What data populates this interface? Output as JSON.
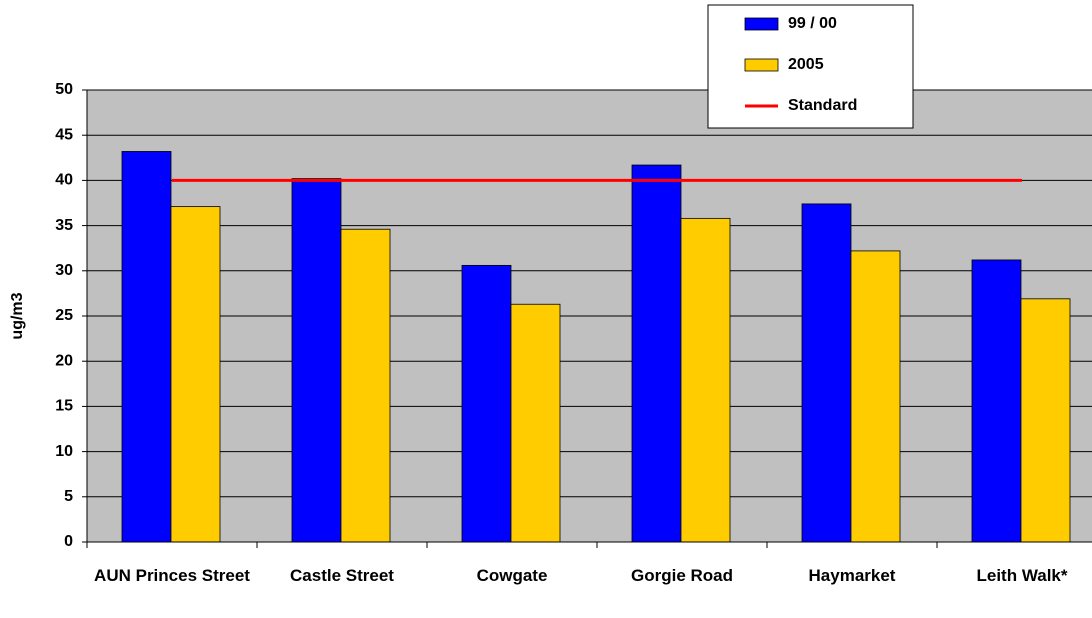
{
  "chart_data": {
    "type": "bar",
    "y_label": "ug/m3",
    "categories": [
      "AUN Princes Street",
      "Castle Street",
      "Cowgate",
      "Gorgie Road",
      "Haymarket",
      "Leith Walk*"
    ],
    "series": [
      {
        "name": "99 / 00",
        "color": "#0000ff",
        "values": [
          43.2,
          40.2,
          30.6,
          41.7,
          37.4,
          31.2
        ]
      },
      {
        "name": "2005",
        "color": "#ffcc00",
        "values": [
          37.1,
          34.6,
          26.3,
          35.8,
          32.2,
          26.9
        ]
      },
      {
        "name": "Standard",
        "type": "line",
        "color": "#ff0000",
        "values": [
          40,
          40,
          40,
          40,
          40,
          40
        ]
      }
    ],
    "ylim": [
      0,
      50
    ],
    "yticks": [
      0,
      5,
      10,
      15,
      20,
      25,
      30,
      35,
      40,
      45,
      50
    ],
    "grid": true,
    "plot_color": "#c0c0c0"
  }
}
